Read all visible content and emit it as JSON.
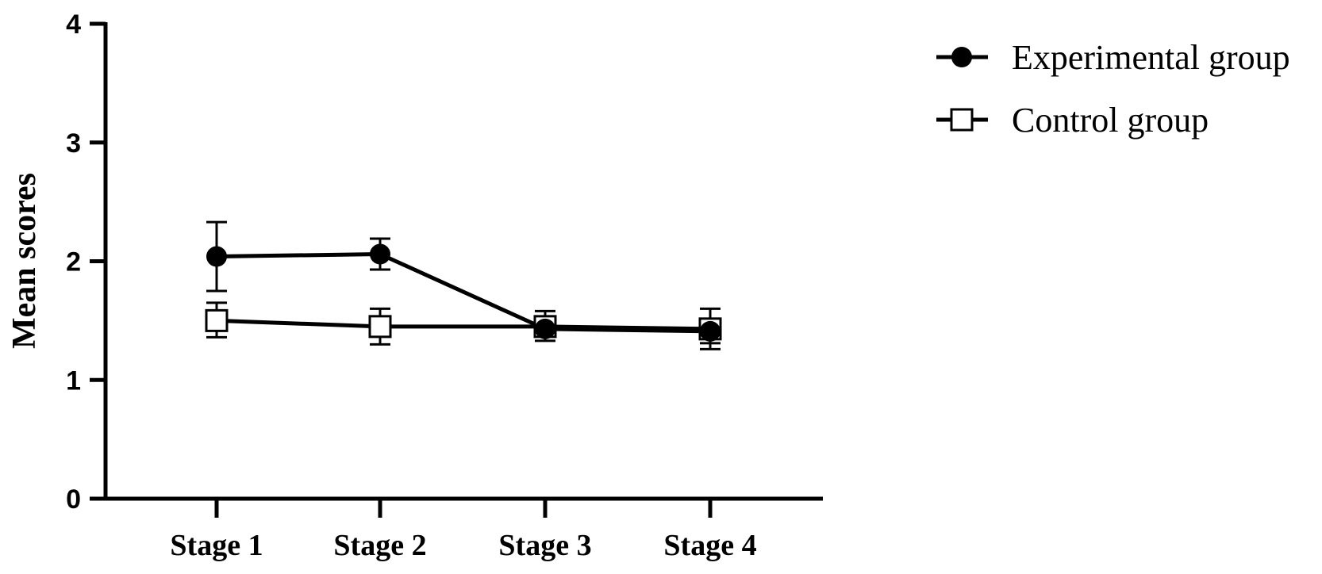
{
  "chart_data": {
    "type": "line",
    "categories": [
      "Stage 1",
      "Stage 2",
      "Stage 3",
      "Stage 4"
    ],
    "ylabel": "Mean scores",
    "xlabel": "",
    "ylim": [
      0,
      4
    ],
    "yticks": [
      "0",
      "1",
      "2",
      "3",
      "4"
    ],
    "grid": false,
    "legend_position": "top-right",
    "series": [
      {
        "name": "Experimental group",
        "marker": "filled-circle",
        "color": "#000000",
        "values": [
          2.04,
          2.06,
          1.43,
          1.41
        ],
        "error_low": [
          1.75,
          1.93,
          1.33,
          1.31
        ],
        "error_high": [
          2.33,
          2.19,
          1.53,
          1.51
        ]
      },
      {
        "name": "Control group",
        "marker": "open-square",
        "color": "#000000",
        "values": [
          1.5,
          1.45,
          1.45,
          1.43
        ],
        "error_low": [
          1.36,
          1.3,
          1.37,
          1.26
        ],
        "error_high": [
          1.65,
          1.6,
          1.58,
          1.6
        ]
      }
    ]
  }
}
